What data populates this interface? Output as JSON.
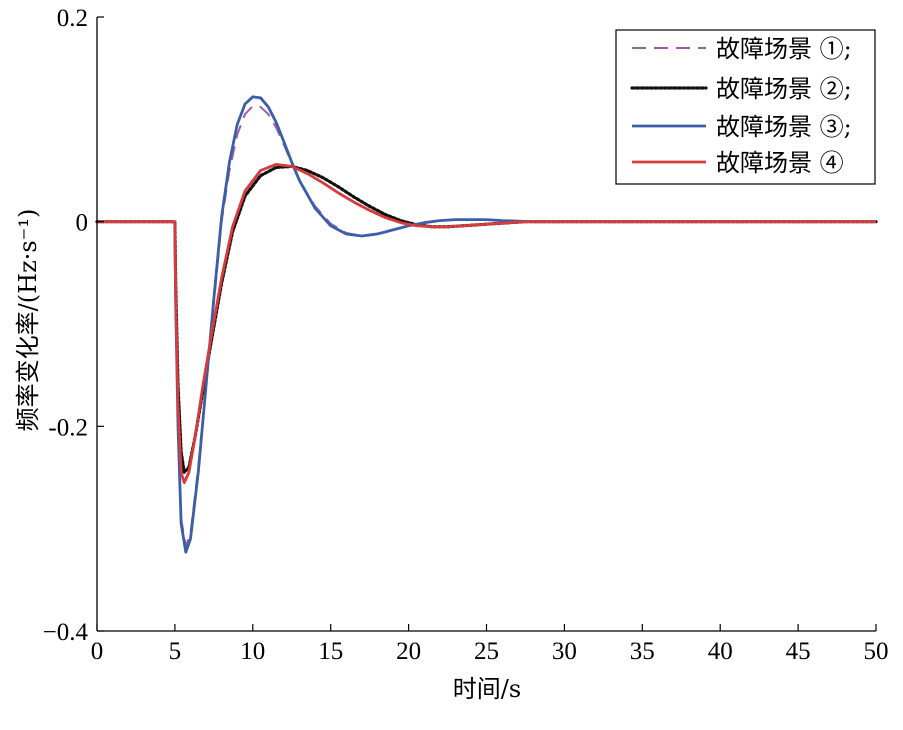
{
  "chart_data": {
    "type": "line",
    "title": "",
    "xlabel": "时间/s",
    "ylabel": "频率变化率/(Hz·s⁻¹)",
    "xlim": [
      0,
      50
    ],
    "ylim": [
      -0.4,
      0.2
    ],
    "xticks": [
      0,
      5,
      10,
      15,
      20,
      25,
      30,
      35,
      40,
      45,
      50
    ],
    "yticks": [
      -0.4,
      -0.2,
      0,
      0.2
    ],
    "ytick_labels": [
      "−0.4",
      "-0.2",
      "0",
      "0.2"
    ],
    "grid": false,
    "legend_position": "top-right",
    "series": [
      {
        "name": "故障场景 ①;",
        "color": "#a35bab",
        "style": "dashed",
        "x": [
          0,
          5,
          5.05,
          5.2,
          5.4,
          5.7,
          6.0,
          6.5,
          7,
          7.5,
          8,
          8.5,
          9,
          9.5,
          10,
          10.5,
          11,
          11.5,
          12,
          12.5,
          13,
          14,
          15,
          16,
          17,
          18,
          19,
          20,
          21,
          22,
          23,
          24,
          25,
          26,
          27,
          28,
          30,
          35,
          40,
          45,
          50
        ],
        "y": [
          0,
          0,
          -0.08,
          -0.2,
          -0.29,
          -0.317,
          -0.305,
          -0.24,
          -0.16,
          -0.08,
          0.0,
          0.05,
          0.085,
          0.105,
          0.113,
          0.112,
          0.105,
          0.092,
          0.075,
          0.057,
          0.04,
          0.015,
          -0.002,
          -0.011,
          -0.014,
          -0.012,
          -0.008,
          -0.004,
          -0.001,
          0.001,
          0.002,
          0.002,
          0.002,
          0.001,
          0.0005,
          0,
          0,
          0,
          0,
          0,
          0
        ]
      },
      {
        "name": "故障场景 ②;",
        "color": "#111111",
        "style": "dotted",
        "x": [
          0,
          5,
          5.05,
          5.2,
          5.4,
          5.6,
          5.9,
          6.3,
          6.8,
          7.3,
          8,
          8.7,
          9.5,
          10.5,
          11.5,
          12.5,
          13.5,
          14.5,
          15.5,
          16.5,
          17.5,
          18.5,
          19.5,
          20.5,
          21.5,
          22.5,
          23.5,
          24.5,
          25.5,
          26.5,
          27.5,
          30,
          35,
          40,
          45,
          50
        ],
        "y": [
          0,
          0,
          -0.06,
          -0.16,
          -0.225,
          -0.245,
          -0.24,
          -0.21,
          -0.165,
          -0.12,
          -0.06,
          -0.01,
          0.025,
          0.045,
          0.053,
          0.054,
          0.05,
          0.043,
          0.034,
          0.024,
          0.015,
          0.007,
          0.001,
          -0.003,
          -0.005,
          -0.005,
          -0.004,
          -0.003,
          -0.002,
          -0.001,
          0,
          0,
          0,
          0,
          0,
          0
        ]
      },
      {
        "name": "故障场景 ③;",
        "color": "#3a5ea8",
        "style": "solid",
        "x": [
          0,
          5,
          5.05,
          5.2,
          5.4,
          5.7,
          6.0,
          6.5,
          7,
          7.5,
          8,
          8.5,
          9,
          9.5,
          10,
          10.5,
          11,
          11.5,
          12,
          12.5,
          13,
          14,
          15,
          16,
          17,
          18,
          19,
          20,
          21,
          22,
          23,
          24,
          25,
          26,
          27,
          28,
          30,
          35,
          40,
          45,
          50
        ],
        "y": [
          0,
          0,
          -0.08,
          -0.2,
          -0.295,
          -0.323,
          -0.31,
          -0.245,
          -0.16,
          -0.075,
          0.005,
          0.058,
          0.095,
          0.115,
          0.122,
          0.121,
          0.112,
          0.097,
          0.078,
          0.058,
          0.04,
          0.013,
          -0.004,
          -0.012,
          -0.014,
          -0.012,
          -0.008,
          -0.004,
          -0.001,
          0.001,
          0.002,
          0.002,
          0.002,
          0.001,
          0.0005,
          0,
          0,
          0,
          0,
          0,
          0
        ]
      },
      {
        "name": "故障场景 ④",
        "color": "#d93a3a",
        "style": "solid",
        "x": [
          0,
          5,
          5.05,
          5.2,
          5.4,
          5.6,
          5.9,
          6.3,
          6.8,
          7.3,
          8,
          8.7,
          9.5,
          10.5,
          11.5,
          12.5,
          13.5,
          14.5,
          15.5,
          16.5,
          17.5,
          18.5,
          19.5,
          20.5,
          21.5,
          22.5,
          23.5,
          24.5,
          25.5,
          26.5,
          27.5,
          30,
          35,
          40,
          45,
          50
        ],
        "y": [
          0,
          0,
          -0.07,
          -0.18,
          -0.245,
          -0.255,
          -0.245,
          -0.21,
          -0.16,
          -0.115,
          -0.055,
          -0.005,
          0.03,
          0.05,
          0.056,
          0.054,
          0.047,
          0.038,
          0.028,
          0.019,
          0.011,
          0.004,
          -0.001,
          -0.004,
          -0.005,
          -0.005,
          -0.004,
          -0.003,
          -0.002,
          -0.001,
          0,
          0,
          0,
          0,
          0,
          0
        ]
      }
    ]
  }
}
